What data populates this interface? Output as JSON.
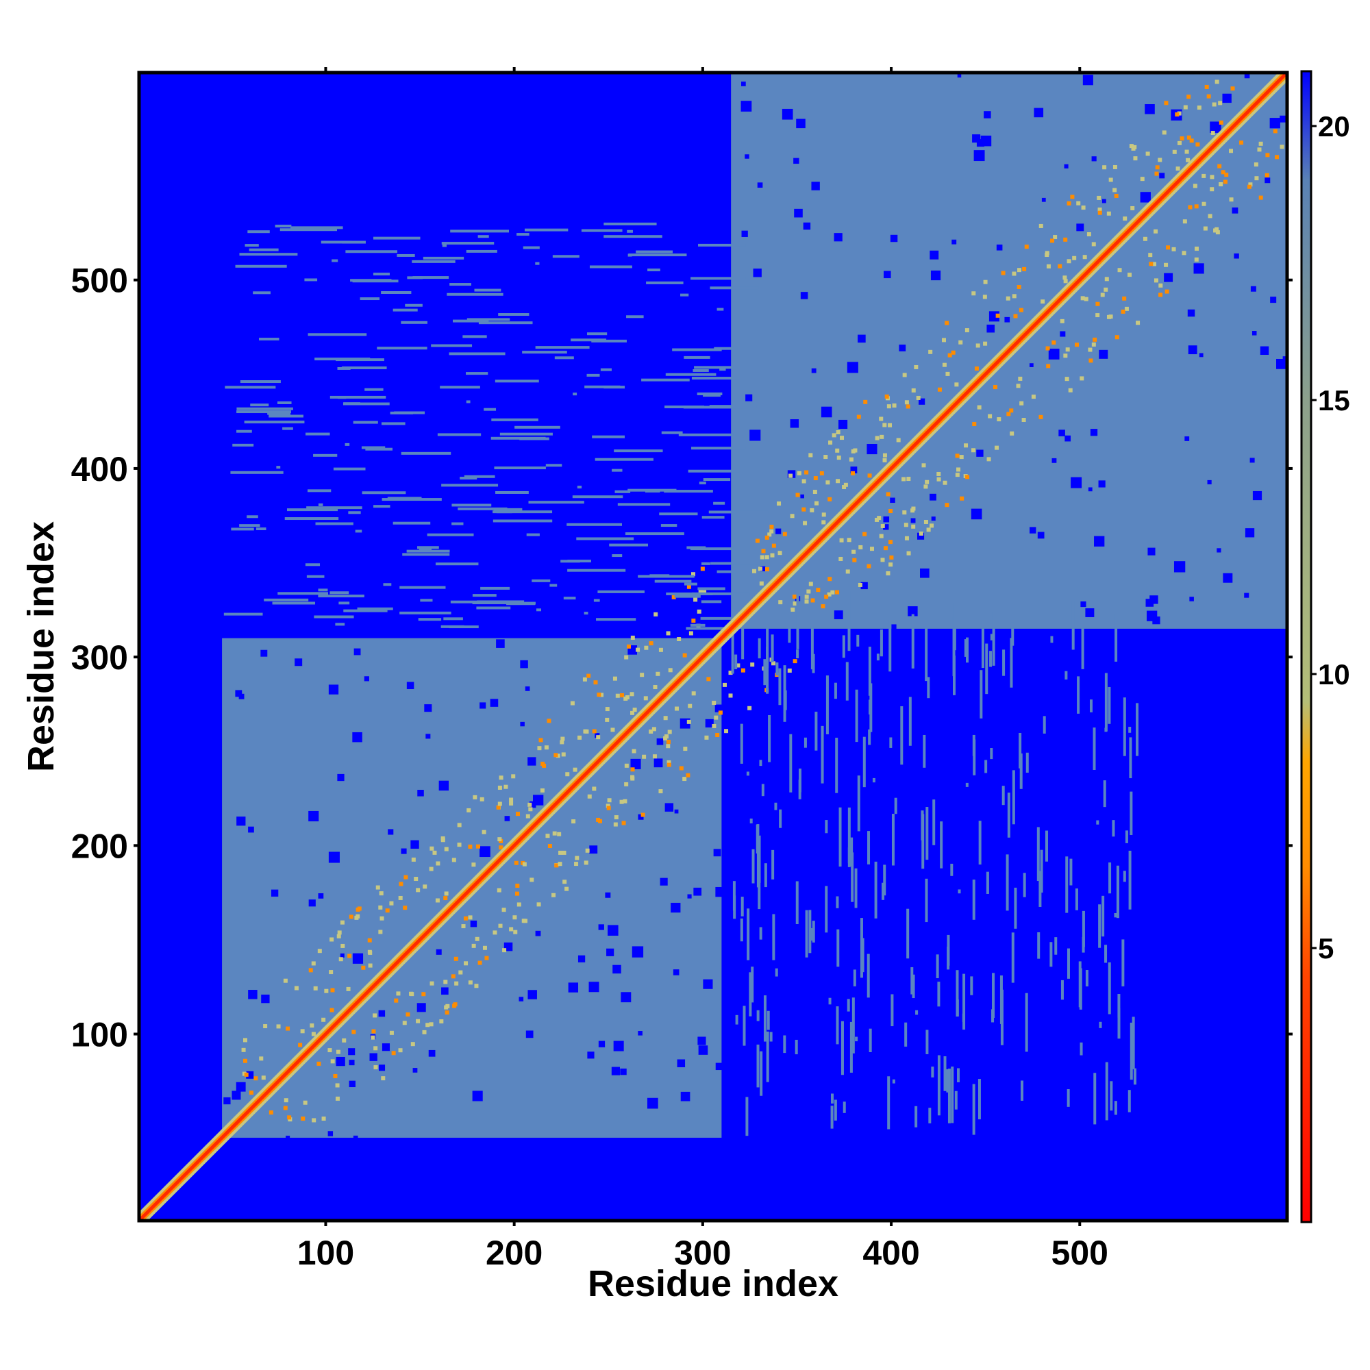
{
  "chart_data": {
    "type": "heatmap",
    "title": "",
    "xlabel": "Residue index",
    "ylabel": "Residue index",
    "xlim": [
      1,
      610
    ],
    "ylim": [
      1,
      610
    ],
    "x_ticks": [
      100,
      200,
      300,
      400,
      500
    ],
    "y_ticks": [
      100,
      200,
      300,
      400,
      500
    ],
    "colorbar": {
      "range": [
        0,
        21
      ],
      "ticks": [
        5,
        10,
        15,
        20
      ],
      "stops": [
        {
          "value": 0,
          "color": "#ff0000"
        },
        {
          "value": 4.5,
          "color": "#ff4500"
        },
        {
          "value": 6.5,
          "color": "#ff8c00"
        },
        {
          "value": 8.4,
          "color": "#ffa500"
        },
        {
          "value": 9.5,
          "color": "#b4be78"
        },
        {
          "value": 15,
          "color": "#8ca08c"
        },
        {
          "value": 19,
          "color": "#5a82b4"
        },
        {
          "value": 21,
          "color": "#0000ff"
        }
      ]
    },
    "colors": {
      "background": "#0000ff",
      "domain_fill": "#5b86c0",
      "contact_strong": "#ff2a00",
      "contact_medium": "#ff8c00",
      "contact_weak": "#c8c882"
    },
    "domains": [
      {
        "start": 45,
        "end": 310
      },
      {
        "start": 315,
        "end": 610
      }
    ],
    "diagonal_band": {
      "from": 1,
      "to": 610
    },
    "grid": false,
    "legend": "colorbar-right"
  }
}
